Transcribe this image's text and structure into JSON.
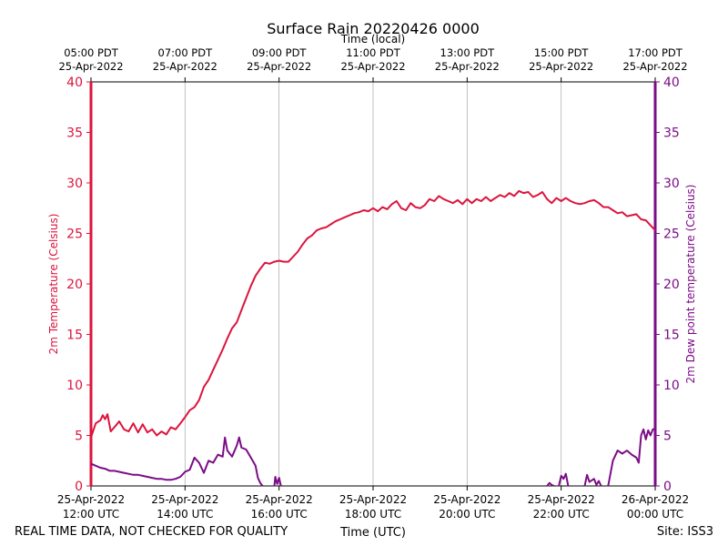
{
  "chart_data": {
    "type": "line",
    "title": "Surface Rain 20220426 0000",
    "top_axis_label": "Time (local)",
    "xlabel": "Time (UTC)",
    "ylabel_left": "2m Temperature (Celsius)",
    "ylabel_right": "2m Dew point temperature (Celsius)",
    "ylim": [
      0,
      40
    ],
    "y_ticks": [
      "0",
      "5",
      "10",
      "15",
      "20",
      "25",
      "30",
      "35",
      "40"
    ],
    "x_range_utc_hours": [
      12,
      24
    ],
    "x_ticks_utc": [
      {
        "t": 12,
        "date": "25-Apr-2022",
        "time": "12:00 UTC"
      },
      {
        "t": 14,
        "date": "25-Apr-2022",
        "time": "14:00 UTC"
      },
      {
        "t": 16,
        "date": "25-Apr-2022",
        "time": "16:00 UTC"
      },
      {
        "t": 18,
        "date": "25-Apr-2022",
        "time": "18:00 UTC"
      },
      {
        "t": 20,
        "date": "25-Apr-2022",
        "time": "20:00 UTC"
      },
      {
        "t": 22,
        "date": "25-Apr-2022",
        "time": "22:00 UTC"
      },
      {
        "t": 24,
        "date": "26-Apr-2022",
        "time": "00:00 UTC"
      }
    ],
    "x_ticks_local": [
      {
        "t": 12,
        "time": "05:00 PDT",
        "date": "25-Apr-2022"
      },
      {
        "t": 14,
        "time": "07:00 PDT",
        "date": "25-Apr-2022"
      },
      {
        "t": 16,
        "time": "09:00 PDT",
        "date": "25-Apr-2022"
      },
      {
        "t": 18,
        "time": "11:00 PDT",
        "date": "25-Apr-2022"
      },
      {
        "t": 20,
        "time": "13:00 PDT",
        "date": "25-Apr-2022"
      },
      {
        "t": 22,
        "time": "15:00 PDT",
        "date": "25-Apr-2022"
      },
      {
        "t": 24,
        "time": "17:00 PDT",
        "date": "25-Apr-2022"
      }
    ],
    "grid": "vertical",
    "series": [
      {
        "name": "2m Temperature (Celsius)",
        "axis": "left",
        "color": "#dc143c",
        "points": [
          [
            12.0,
            4.8
          ],
          [
            12.1,
            6.2
          ],
          [
            12.2,
            6.5
          ],
          [
            12.25,
            7.0
          ],
          [
            12.3,
            6.6
          ],
          [
            12.35,
            7.1
          ],
          [
            12.42,
            5.4
          ],
          [
            12.55,
            6.1
          ],
          [
            12.6,
            6.4
          ],
          [
            12.7,
            5.6
          ],
          [
            12.8,
            5.4
          ],
          [
            12.9,
            6.2
          ],
          [
            13.0,
            5.3
          ],
          [
            13.1,
            6.1
          ],
          [
            13.2,
            5.3
          ],
          [
            13.3,
            5.6
          ],
          [
            13.4,
            5.0
          ],
          [
            13.5,
            5.4
          ],
          [
            13.6,
            5.1
          ],
          [
            13.7,
            5.8
          ],
          [
            13.8,
            5.6
          ],
          [
            13.9,
            6.2
          ],
          [
            14.0,
            6.8
          ],
          [
            14.1,
            7.5
          ],
          [
            14.2,
            7.8
          ],
          [
            14.3,
            8.5
          ],
          [
            14.4,
            9.8
          ],
          [
            14.5,
            10.5
          ],
          [
            14.6,
            11.5
          ],
          [
            14.7,
            12.5
          ],
          [
            14.8,
            13.5
          ],
          [
            14.9,
            14.6
          ],
          [
            15.0,
            15.6
          ],
          [
            15.1,
            16.2
          ],
          [
            15.2,
            17.4
          ],
          [
            15.3,
            18.6
          ],
          [
            15.4,
            19.8
          ],
          [
            15.5,
            20.8
          ],
          [
            15.6,
            21.5
          ],
          [
            15.7,
            22.1
          ],
          [
            15.8,
            22.0
          ],
          [
            15.9,
            22.2
          ],
          [
            16.0,
            22.3
          ],
          [
            16.1,
            22.2
          ],
          [
            16.2,
            22.2
          ],
          [
            16.3,
            22.7
          ],
          [
            16.4,
            23.2
          ],
          [
            16.5,
            23.9
          ],
          [
            16.6,
            24.5
          ],
          [
            16.7,
            24.8
          ],
          [
            16.8,
            25.3
          ],
          [
            16.9,
            25.5
          ],
          [
            17.0,
            25.6
          ],
          [
            17.1,
            25.9
          ],
          [
            17.2,
            26.2
          ],
          [
            17.3,
            26.4
          ],
          [
            17.4,
            26.6
          ],
          [
            17.5,
            26.8
          ],
          [
            17.6,
            27.0
          ],
          [
            17.7,
            27.1
          ],
          [
            17.8,
            27.3
          ],
          [
            17.9,
            27.2
          ],
          [
            18.0,
            27.5
          ],
          [
            18.1,
            27.2
          ],
          [
            18.2,
            27.6
          ],
          [
            18.3,
            27.4
          ],
          [
            18.4,
            27.9
          ],
          [
            18.5,
            28.2
          ],
          [
            18.6,
            27.5
          ],
          [
            18.7,
            27.3
          ],
          [
            18.8,
            28.0
          ],
          [
            18.9,
            27.6
          ],
          [
            19.0,
            27.5
          ],
          [
            19.1,
            27.8
          ],
          [
            19.2,
            28.4
          ],
          [
            19.3,
            28.2
          ],
          [
            19.4,
            28.7
          ],
          [
            19.5,
            28.4
          ],
          [
            19.6,
            28.2
          ],
          [
            19.7,
            28.0
          ],
          [
            19.8,
            28.3
          ],
          [
            19.9,
            27.9
          ],
          [
            20.0,
            28.4
          ],
          [
            20.1,
            28.0
          ],
          [
            20.2,
            28.4
          ],
          [
            20.3,
            28.2
          ],
          [
            20.4,
            28.6
          ],
          [
            20.5,
            28.2
          ],
          [
            20.6,
            28.5
          ],
          [
            20.7,
            28.8
          ],
          [
            20.8,
            28.6
          ],
          [
            20.9,
            29.0
          ],
          [
            21.0,
            28.7
          ],
          [
            21.1,
            29.2
          ],
          [
            21.2,
            29.0
          ],
          [
            21.3,
            29.1
          ],
          [
            21.4,
            28.6
          ],
          [
            21.5,
            28.8
          ],
          [
            21.6,
            29.1
          ],
          [
            21.7,
            28.4
          ],
          [
            21.8,
            28.0
          ],
          [
            21.9,
            28.5
          ],
          [
            22.0,
            28.2
          ],
          [
            22.1,
            28.5
          ],
          [
            22.2,
            28.2
          ],
          [
            22.3,
            28.0
          ],
          [
            22.4,
            27.9
          ],
          [
            22.5,
            28.0
          ],
          [
            22.6,
            28.2
          ],
          [
            22.7,
            28.3
          ],
          [
            22.8,
            28.0
          ],
          [
            22.9,
            27.6
          ],
          [
            23.0,
            27.6
          ],
          [
            23.1,
            27.3
          ],
          [
            23.2,
            27.0
          ],
          [
            23.3,
            27.1
          ],
          [
            23.4,
            26.7
          ],
          [
            23.5,
            26.8
          ],
          [
            23.6,
            26.9
          ],
          [
            23.7,
            26.4
          ],
          [
            23.8,
            26.3
          ],
          [
            23.9,
            25.8
          ],
          [
            24.0,
            25.3
          ]
        ]
      },
      {
        "name": "2m Dew point temperature (Celsius)",
        "axis": "right",
        "color": "#7b0d86",
        "segments": [
          [
            [
              12.0,
              2.2
            ],
            [
              12.1,
              2.0
            ],
            [
              12.2,
              1.8
            ],
            [
              12.3,
              1.7
            ],
            [
              12.4,
              1.5
            ],
            [
              12.5,
              1.5
            ],
            [
              12.6,
              1.4
            ],
            [
              12.7,
              1.3
            ],
            [
              12.8,
              1.2
            ],
            [
              12.9,
              1.1
            ],
            [
              13.0,
              1.1
            ],
            [
              13.1,
              1.0
            ],
            [
              13.2,
              0.9
            ],
            [
              13.3,
              0.8
            ],
            [
              13.4,
              0.7
            ],
            [
              13.5,
              0.7
            ],
            [
              13.6,
              0.6
            ],
            [
              13.7,
              0.6
            ],
            [
              13.8,
              0.7
            ],
            [
              13.9,
              0.9
            ],
            [
              14.0,
              1.4
            ],
            [
              14.1,
              1.6
            ],
            [
              14.2,
              2.8
            ],
            [
              14.3,
              2.3
            ],
            [
              14.4,
              1.3
            ],
            [
              14.5,
              2.5
            ],
            [
              14.6,
              2.3
            ],
            [
              14.7,
              3.1
            ],
            [
              14.8,
              2.9
            ],
            [
              14.85,
              4.8
            ],
            [
              14.9,
              3.5
            ],
            [
              15.0,
              2.9
            ],
            [
              15.1,
              4.0
            ],
            [
              15.15,
              4.8
            ],
            [
              15.2,
              3.8
            ],
            [
              15.3,
              3.6
            ],
            [
              15.4,
              2.8
            ],
            [
              15.5,
              2.0
            ],
            [
              15.55,
              0.8
            ],
            [
              15.6,
              0.3
            ],
            [
              15.65,
              0.0
            ]
          ],
          [
            [
              15.9,
              0.0
            ],
            [
              15.92,
              0.9
            ],
            [
              15.96,
              0.2
            ],
            [
              16.0,
              0.8
            ],
            [
              16.04,
              0.0
            ]
          ],
          [
            [
              21.7,
              0.0
            ],
            [
              21.75,
              0.3
            ],
            [
              21.8,
              0.1
            ],
            [
              21.85,
              0.0
            ]
          ],
          [
            [
              21.95,
              0.0
            ],
            [
              22.0,
              1.0
            ],
            [
              22.05,
              0.7
            ],
            [
              22.1,
              1.2
            ],
            [
              22.15,
              0.0
            ]
          ],
          [
            [
              22.5,
              0.0
            ],
            [
              22.55,
              1.1
            ],
            [
              22.6,
              0.4
            ],
            [
              22.7,
              0.7
            ],
            [
              22.75,
              0.1
            ],
            [
              22.8,
              0.5
            ],
            [
              22.85,
              0.0
            ]
          ],
          [
            [
              23.0,
              0.0
            ],
            [
              23.1,
              2.5
            ],
            [
              23.2,
              3.5
            ],
            [
              23.3,
              3.2
            ],
            [
              23.4,
              3.5
            ],
            [
              23.5,
              3.1
            ],
            [
              23.6,
              2.8
            ],
            [
              23.65,
              2.3
            ],
            [
              23.7,
              5.0
            ],
            [
              23.75,
              5.6
            ],
            [
              23.8,
              4.6
            ],
            [
              23.85,
              5.5
            ],
            [
              23.9,
              5.0
            ],
            [
              23.95,
              5.6
            ],
            [
              24.0,
              5.6
            ]
          ]
        ]
      }
    ]
  },
  "footer": {
    "disclaimer": "REAL TIME DATA, NOT CHECKED FOR QUALITY",
    "site": "Site: ISS3"
  }
}
